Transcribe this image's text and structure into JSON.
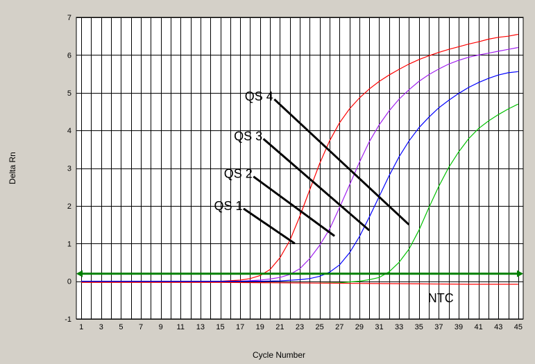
{
  "chart_data": {
    "type": "line",
    "title": "",
    "xlabel": "Cycle Number",
    "ylabel": "Delta Rn",
    "xlim": [
      0.5,
      45.5
    ],
    "ylim": [
      -1,
      7
    ],
    "x_ticks": [
      1,
      3,
      5,
      7,
      9,
      11,
      13,
      15,
      17,
      19,
      21,
      23,
      25,
      27,
      29,
      31,
      33,
      35,
      37,
      39,
      41,
      43,
      45
    ],
    "y_ticks": [
      -1,
      0,
      1,
      2,
      3,
      4,
      5,
      6,
      7
    ],
    "grid": true,
    "legend": "none",
    "threshold": {
      "value": 0.2,
      "color": "#007f00"
    },
    "series": [
      {
        "name": "QS 4",
        "color": "#ff0000",
        "x": [
          1,
          3,
          5,
          7,
          9,
          11,
          13,
          15,
          17,
          18,
          19,
          20,
          21,
          22,
          23,
          24,
          25,
          26,
          27,
          28,
          29,
          30,
          31,
          32,
          33,
          34,
          35,
          36,
          37,
          38,
          39,
          40,
          41,
          42,
          43,
          44,
          45
        ],
        "y": [
          0,
          0,
          0,
          0,
          0,
          0,
          0,
          0,
          0.03,
          0.07,
          0.15,
          0.31,
          0.62,
          1.08,
          1.72,
          2.42,
          3.12,
          3.72,
          4.2,
          4.57,
          4.86,
          5.1,
          5.3,
          5.47,
          5.62,
          5.76,
          5.88,
          5.98,
          6.07,
          6.15,
          6.22,
          6.29,
          6.35,
          6.42,
          6.47,
          6.5,
          6.55
        ]
      },
      {
        "name": "QS 3",
        "color": "#a020f0",
        "x": [
          1,
          3,
          5,
          7,
          9,
          11,
          13,
          15,
          17,
          19,
          20,
          21,
          22,
          23,
          24,
          25,
          26,
          27,
          28,
          29,
          30,
          31,
          32,
          33,
          34,
          35,
          36,
          37,
          38,
          39,
          40,
          41,
          42,
          43,
          44,
          45
        ],
        "y": [
          0,
          0,
          0,
          0,
          0,
          0,
          0,
          0,
          0,
          0.03,
          0.06,
          0.1,
          0.18,
          0.33,
          0.6,
          0.95,
          1.38,
          1.95,
          2.55,
          3.15,
          3.7,
          4.15,
          4.52,
          4.83,
          5.08,
          5.3,
          5.48,
          5.63,
          5.76,
          5.86,
          5.94,
          6.0,
          6.05,
          6.1,
          6.15,
          6.2
        ]
      },
      {
        "name": "QS 2",
        "color": "#0000ff",
        "x": [
          1,
          3,
          5,
          7,
          9,
          11,
          13,
          15,
          17,
          19,
          21,
          23,
          24,
          25,
          26,
          27,
          28,
          29,
          30,
          31,
          32,
          33,
          34,
          35,
          36,
          37,
          38,
          39,
          40,
          41,
          42,
          43,
          44,
          45
        ],
        "y": [
          0,
          0,
          0,
          0,
          0,
          0,
          0,
          0,
          0,
          0,
          0.01,
          0.04,
          0.07,
          0.13,
          0.24,
          0.43,
          0.75,
          1.18,
          1.7,
          2.25,
          2.8,
          3.3,
          3.72,
          4.07,
          4.35,
          4.6,
          4.8,
          4.98,
          5.14,
          5.27,
          5.38,
          5.47,
          5.53,
          5.56
        ]
      },
      {
        "name": "QS 1",
        "color": "#00c000",
        "x": [
          25,
          27,
          29,
          30,
          31,
          32,
          33,
          34,
          35,
          36,
          37,
          38,
          39,
          40,
          41,
          42,
          43,
          44,
          45
        ],
        "y": [
          -0.05,
          -0.04,
          0,
          0.04,
          0.1,
          0.25,
          0.5,
          0.85,
          1.35,
          1.95,
          2.52,
          3.02,
          3.43,
          3.78,
          4.05,
          4.25,
          4.42,
          4.57,
          4.7
        ]
      },
      {
        "name": "NTC",
        "color": "#ff0000",
        "x": [
          1,
          5,
          10,
          15,
          20,
          25,
          30,
          35,
          40,
          45
        ],
        "y": [
          -0.03,
          -0.03,
          -0.03,
          -0.03,
          -0.04,
          -0.05,
          -0.06,
          -0.07,
          -0.08,
          -0.08
        ]
      }
    ],
    "annotations": [
      {
        "text": "QS 4",
        "pointer_x": 34.0,
        "pointer_y": 1.5,
        "text_x": 18.9,
        "text_y": 4.9
      },
      {
        "text": "QS 3",
        "pointer_x": 30.0,
        "pointer_y": 1.35,
        "text_x": 17.8,
        "text_y": 3.85
      },
      {
        "text": "QS 2",
        "pointer_x": 26.5,
        "pointer_y": 1.2,
        "text_x": 16.8,
        "text_y": 2.85
      },
      {
        "text": "QS 1",
        "pointer_x": 22.5,
        "pointer_y": 1.0,
        "text_x": 15.8,
        "text_y": 2.0
      },
      {
        "text": "NTC",
        "text_x": 37.2,
        "text_y": -0.45
      }
    ]
  }
}
